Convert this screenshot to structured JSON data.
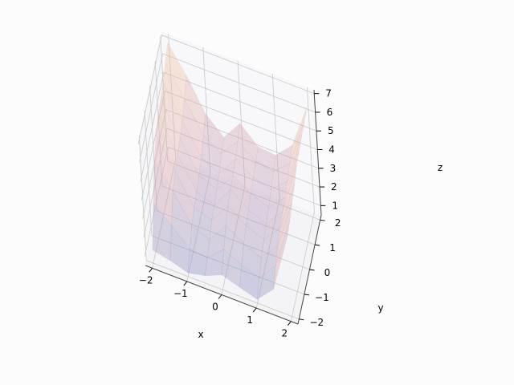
{
  "chart_data": {
    "type": "surface3d",
    "xlabel": "x",
    "ylabel": "y",
    "zlabel": "z",
    "x_ticks": [
      -2,
      -1,
      0,
      1,
      2
    ],
    "y_ticks": [
      -2,
      -1,
      0,
      1,
      2
    ],
    "z_ticks": [
      1,
      2,
      3,
      4,
      5,
      6,
      7
    ],
    "x_tick_labels": [
      "−2",
      "−1",
      "0",
      "1",
      "2"
    ],
    "y_tick_labels": [
      "−2",
      "−1",
      "0",
      "1",
      "2"
    ],
    "z_tick_labels": [
      "1",
      "2",
      "3",
      "4",
      "5",
      "6",
      "7"
    ],
    "xlim": [
      -2.2,
      2.2
    ],
    "ylim": [
      -2.2,
      2.2
    ],
    "zlim": [
      0.5,
      7.2
    ],
    "grid": true,
    "surface": {
      "x": [
        -2,
        -1.5,
        -1,
        -0.5,
        0,
        0.5,
        1,
        1.5,
        2
      ],
      "y": [
        -2,
        -1.5,
        -1,
        -0.5,
        0,
        0.5,
        1,
        1.5,
        2
      ],
      "z": [
        [
          1.2,
          1.0,
          0.7,
          0.9,
          1.3,
          1.0,
          0.7,
          1.6,
          4.8
        ],
        [
          3.0,
          2.2,
          1.3,
          1.2,
          2.0,
          1.5,
          1.2,
          2.2,
          5.0
        ],
        [
          4.6,
          3.4,
          1.9,
          1.5,
          2.6,
          2.0,
          1.6,
          2.6,
          5.3
        ],
        [
          5.4,
          3.8,
          2.2,
          1.9,
          3.0,
          2.3,
          1.9,
          2.9,
          5.6
        ],
        [
          5.8,
          4.0,
          2.4,
          2.0,
          3.2,
          2.5,
          2.1,
          3.1,
          6.0
        ],
        [
          6.0,
          4.2,
          2.6,
          2.2,
          3.3,
          2.7,
          2.3,
          3.2,
          6.1
        ],
        [
          6.2,
          4.5,
          2.9,
          2.4,
          3.5,
          2.9,
          2.6,
          3.4,
          6.2
        ],
        [
          6.6,
          5.0,
          3.4,
          2.8,
          3.8,
          3.1,
          2.9,
          3.7,
          6.3
        ],
        [
          7.0,
          5.6,
          3.9,
          3.0,
          4.1,
          3.2,
          3.1,
          4.0,
          6.4
        ]
      ]
    },
    "colors": {
      "surface_low": "#7e8bc4",
      "surface_mid": "#d9a3ad",
      "surface_high": "#f2cf9a",
      "grid": "#c8c8c8",
      "pane": "#f4f4f6"
    }
  }
}
